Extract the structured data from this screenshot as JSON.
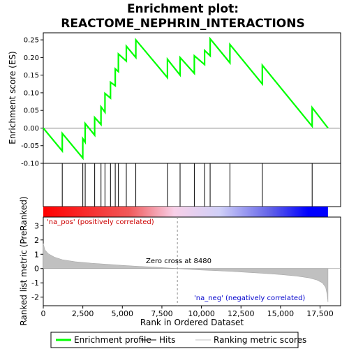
{
  "chart_data": {
    "type": "line",
    "title": "Enrichment plot:",
    "subtitle": "REACTOME_NEPHRIN_INTERACTIONS",
    "xlabel": "Rank in Ordered Dataset",
    "x_ticks": [
      "0",
      "2,500",
      "5,000",
      "7,500",
      "10,000",
      "12,500",
      "15,000",
      "17,500"
    ],
    "xlim": [
      0,
      18800
    ],
    "es_panel": {
      "ylabel": "Enrichment score (ES)",
      "ylim": [
        -0.1,
        0.27
      ],
      "y_ticks": [
        "-0.10",
        "-0.05",
        "0.00",
        "0.05",
        "0.10",
        "0.15",
        "0.20",
        "0.25"
      ],
      "line_color": "#00ff00",
      "points": [
        [
          0,
          0.0
        ],
        [
          1200,
          -0.065
        ],
        [
          1200,
          -0.015
        ],
        [
          2500,
          -0.085
        ],
        [
          2500,
          -0.03
        ],
        [
          2650,
          -0.04
        ],
        [
          2650,
          0.013
        ],
        [
          3250,
          -0.02
        ],
        [
          3250,
          0.03
        ],
        [
          3650,
          0.01
        ],
        [
          3650,
          0.06
        ],
        [
          3900,
          0.045
        ],
        [
          3900,
          0.098
        ],
        [
          4250,
          0.085
        ],
        [
          4250,
          0.13
        ],
        [
          4550,
          0.12
        ],
        [
          4550,
          0.168
        ],
        [
          4750,
          0.16
        ],
        [
          4750,
          0.21
        ],
        [
          5250,
          0.19
        ],
        [
          5250,
          0.232
        ],
        [
          5850,
          0.2
        ],
        [
          5850,
          0.25
        ],
        [
          7850,
          0.143
        ],
        [
          7850,
          0.195
        ],
        [
          8650,
          0.15
        ],
        [
          8650,
          0.2
        ],
        [
          9550,
          0.155
        ],
        [
          9550,
          0.205
        ],
        [
          10200,
          0.18
        ],
        [
          10200,
          0.22
        ],
        [
          10550,
          0.205
        ],
        [
          10550,
          0.253
        ],
        [
          11800,
          0.185
        ],
        [
          11800,
          0.237
        ],
        [
          13850,
          0.125
        ],
        [
          13850,
          0.178
        ],
        [
          17000,
          0.005
        ],
        [
          17000,
          0.058
        ],
        [
          18000,
          0.0
        ]
      ]
    },
    "hits": [
      1200,
      2500,
      2650,
      3250,
      3650,
      3900,
      4250,
      4550,
      4750,
      5250,
      5850,
      7850,
      8650,
      9550,
      10200,
      10550,
      11800,
      13850,
      17000
    ],
    "metric_panel": {
      "ylabel": "Ranked list metric (PreRanked)",
      "ylim": [
        -2.6,
        3.6
      ],
      "y_ticks": [
        "-2",
        "-1",
        "0",
        "1",
        "2",
        "3"
      ],
      "zero_cross_label": "Zero cross at 8480",
      "zero_cross": 8480,
      "pos_label": "'na_pos' (positively correlated)",
      "neg_label": "'na_neg' (negatively correlated)",
      "fill_color": "#c0c0c0",
      "curve": [
        [
          0,
          1.75
        ],
        [
          100,
          1.3
        ],
        [
          300,
          1.05
        ],
        [
          700,
          0.8
        ],
        [
          1200,
          0.62
        ],
        [
          2000,
          0.48
        ],
        [
          3000,
          0.38
        ],
        [
          4000,
          0.3
        ],
        [
          5000,
          0.22
        ],
        [
          6000,
          0.16
        ],
        [
          7000,
          0.1
        ],
        [
          8000,
          0.03
        ],
        [
          8480,
          0.0
        ],
        [
          9000,
          -0.04
        ],
        [
          10000,
          -0.1
        ],
        [
          11000,
          -0.15
        ],
        [
          12000,
          -0.21
        ],
        [
          13000,
          -0.27
        ],
        [
          14000,
          -0.34
        ],
        [
          15000,
          -0.42
        ],
        [
          16000,
          -0.52
        ],
        [
          16800,
          -0.65
        ],
        [
          17300,
          -0.8
        ],
        [
          17650,
          -1.0
        ],
        [
          17850,
          -1.3
        ],
        [
          17950,
          -1.8
        ],
        [
          18000,
          -2.35
        ]
      ]
    },
    "legend": {
      "placement": "bottom",
      "items": [
        {
          "label": "Enrichment profile",
          "color": "#00ff00",
          "kind": "thick-line"
        },
        {
          "label": "Hits",
          "color": "#000000",
          "kind": "line"
        },
        {
          "label": "Ranking metric scores",
          "color": "#c0c0c0",
          "kind": "line"
        }
      ]
    },
    "gradient_colors": [
      "#ff0000",
      "#ffffff",
      "#0000ff"
    ]
  }
}
